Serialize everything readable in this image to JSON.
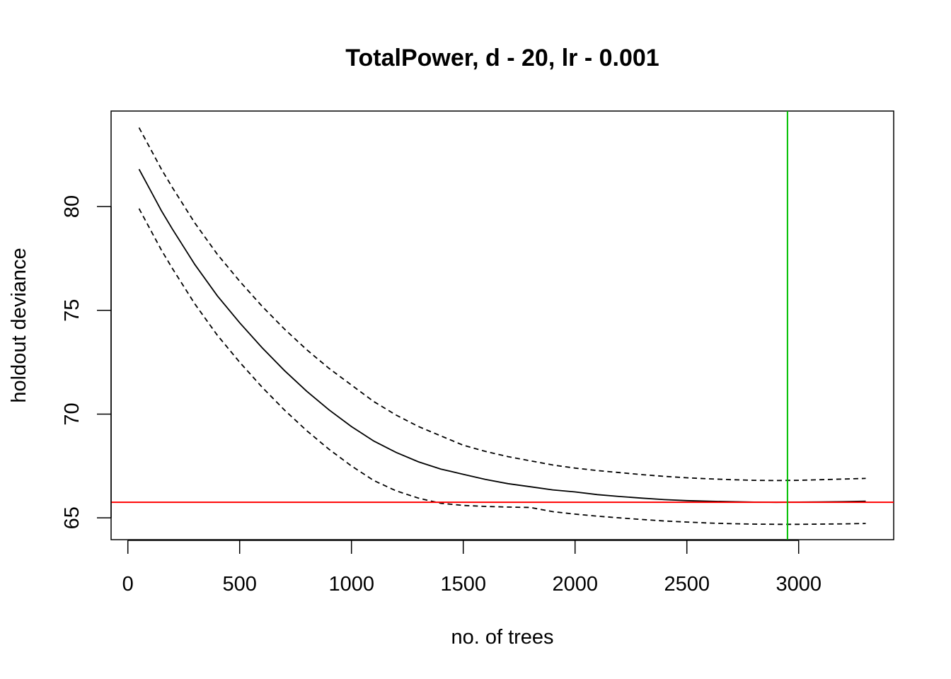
{
  "chart_data": {
    "type": "line",
    "title": "TotalPower, d - 20, lr - 0.001",
    "xlabel": "no. of trees",
    "ylabel": "holdout deviance",
    "xlim": [
      -75,
      3425
    ],
    "ylim": [
      63.95,
      84.6
    ],
    "x_ticks": [
      0,
      500,
      1000,
      1500,
      2000,
      2500,
      3000
    ],
    "x_tick_labels": [
      "0",
      "500",
      "1000",
      "1500",
      "2000",
      "2500",
      "3000"
    ],
    "y_ticks": [
      65,
      70,
      75,
      80
    ],
    "y_tick_labels": [
      "65",
      "70",
      "75",
      "80"
    ],
    "grid": false,
    "x": [
      50,
      100,
      150,
      200,
      300,
      400,
      500,
      600,
      700,
      800,
      900,
      1000,
      1100,
      1200,
      1300,
      1400,
      1500,
      1600,
      1700,
      1800,
      1900,
      2000,
      2100,
      2200,
      2300,
      2400,
      2500,
      2600,
      2700,
      2800,
      2900,
      3000,
      3100,
      3200,
      3300
    ],
    "series": [
      {
        "style": "solid",
        "color": "#000000",
        "values": [
          81.8,
          80.8,
          79.8,
          78.9,
          77.2,
          75.7,
          74.4,
          73.2,
          72.1,
          71.1,
          70.2,
          69.4,
          68.7,
          68.15,
          67.7,
          67.35,
          67.1,
          66.85,
          66.65,
          66.5,
          66.35,
          66.25,
          66.12,
          66.03,
          65.95,
          65.88,
          65.83,
          65.8,
          65.78,
          65.76,
          65.75,
          65.76,
          65.77,
          65.78,
          65.8
        ]
      },
      {
        "style": "dashed",
        "color": "#000000",
        "values": [
          83.8,
          82.8,
          81.8,
          80.9,
          79.2,
          77.7,
          76.4,
          75.2,
          74.1,
          73.1,
          72.2,
          71.4,
          70.6,
          69.95,
          69.4,
          68.95,
          68.5,
          68.2,
          67.95,
          67.75,
          67.55,
          67.4,
          67.28,
          67.18,
          67.08,
          67.0,
          66.93,
          66.88,
          66.84,
          66.81,
          66.8,
          66.81,
          66.84,
          66.87,
          66.9
        ]
      },
      {
        "style": "dashed",
        "color": "#000000",
        "values": [
          79.9,
          78.9,
          77.9,
          77.0,
          75.3,
          73.8,
          72.5,
          71.3,
          70.2,
          69.2,
          68.3,
          67.5,
          66.8,
          66.3,
          65.95,
          65.7,
          65.6,
          65.55,
          65.52,
          65.5,
          65.3,
          65.18,
          65.08,
          65.0,
          64.92,
          64.85,
          64.8,
          64.75,
          64.72,
          64.7,
          64.69,
          64.69,
          64.7,
          64.71,
          64.73
        ]
      }
    ],
    "hline": {
      "y": 65.75,
      "color": "#ff0000"
    },
    "vline": {
      "x": 2950,
      "color": "#00c000"
    }
  }
}
